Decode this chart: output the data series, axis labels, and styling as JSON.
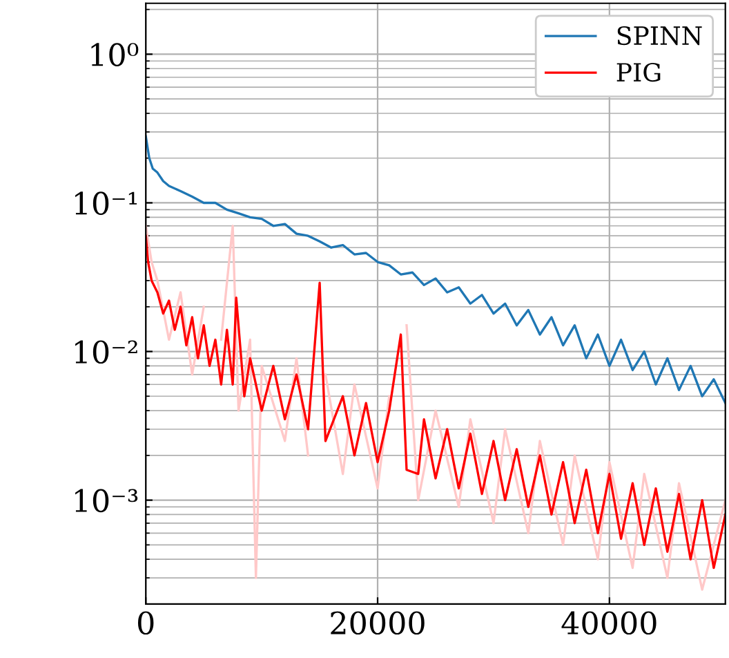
{
  "chart_data": {
    "type": "line",
    "log": "y",
    "grid": true,
    "legend": "top right",
    "xlim": [
      0,
      50000
    ],
    "xticks": [
      0,
      20000,
      40000
    ],
    "ylim": [
      0.0002,
      2.2
    ],
    "yticks": [
      {
        "value": 1,
        "label": "10⁰"
      },
      {
        "value": 0.1,
        "label": "10⁻¹"
      },
      {
        "value": 0.01,
        "label": "10⁻²"
      },
      {
        "value": 0.001,
        "label": "10⁻³"
      }
    ],
    "series": [
      {
        "color": "#ffc8c8",
        "x": [
          0,
          500,
          1000,
          2000,
          3000,
          4000,
          5000,
          6000,
          6500,
          7500,
          8000,
          9000,
          9500,
          10000,
          12000,
          13000,
          14000,
          15000,
          15500,
          17000,
          18000,
          20000,
          21000,
          22000,
          22500,
          23500,
          25000,
          27000,
          28000,
          30000,
          31000,
          33000,
          34000,
          36000,
          37000,
          39000,
          40000,
          42000,
          43000,
          45000,
          46000,
          48000,
          50000
        ],
        "values": [
          0.07,
          0.04,
          0.03,
          0.012,
          0.025,
          0.007,
          0.02,
          null,
          0.012,
          0.07,
          0.004,
          0.012,
          0.0003,
          0.008,
          0.0025,
          0.009,
          0.002,
          null,
          0.007,
          0.0015,
          0.006,
          0.0012,
          0.005,
          null,
          0.015,
          0.001,
          0.004,
          0.0009,
          0.0035,
          0.0007,
          0.003,
          0.0006,
          0.0025,
          0.0005,
          0.002,
          0.0004,
          0.0018,
          0.00035,
          0.0015,
          0.0003,
          0.0013,
          0.00025,
          0.001
        ]
      },
      {
        "name": "SPINN",
        "color": "#1f77b4",
        "x": [
          0,
          300,
          600,
          1000,
          1500,
          2000,
          3000,
          4000,
          5000,
          6000,
          7000,
          8000,
          9000,
          10000,
          11000,
          12000,
          13000,
          14000,
          15000,
          16000,
          17000,
          18000,
          19000,
          20000,
          21000,
          22000,
          23000,
          24000,
          25000,
          26000,
          27000,
          28000,
          29000,
          30000,
          31000,
          32000,
          33000,
          34000,
          35000,
          36000,
          37000,
          38000,
          39000,
          40000,
          41000,
          42000,
          43000,
          44000,
          45000,
          46000,
          47000,
          48000,
          49000,
          50000
        ],
        "values": [
          0.28,
          0.2,
          0.17,
          0.16,
          0.14,
          0.13,
          0.12,
          0.11,
          0.1,
          0.1,
          0.09,
          0.085,
          0.08,
          0.078,
          0.07,
          0.072,
          0.062,
          0.06,
          0.055,
          0.05,
          0.052,
          0.045,
          0.046,
          0.04,
          0.038,
          0.033,
          0.034,
          0.028,
          0.031,
          0.025,
          0.027,
          0.021,
          0.024,
          0.018,
          0.021,
          0.015,
          0.019,
          0.013,
          0.017,
          0.011,
          0.015,
          0.009,
          0.013,
          0.008,
          0.012,
          0.0075,
          0.01,
          0.006,
          0.009,
          0.0055,
          0.008,
          0.005,
          0.0065,
          0.0045
        ]
      },
      {
        "name": "PIG",
        "color": "#ff0000",
        "x": [
          0,
          200,
          500,
          1000,
          1500,
          2000,
          2500,
          3000,
          3500,
          4000,
          4500,
          5000,
          5500,
          6000,
          6500,
          7000,
          7500,
          7800,
          8500,
          9000,
          10000,
          11000,
          12000,
          13000,
          14000,
          15000,
          15500,
          17000,
          18000,
          19000,
          20000,
          21000,
          22000,
          22500,
          23500,
          24000,
          25000,
          26000,
          27000,
          28000,
          29000,
          30000,
          31000,
          32000,
          33000,
          34000,
          35000,
          36000,
          37000,
          38000,
          39000,
          40000,
          41000,
          42000,
          43000,
          44000,
          45000,
          46000,
          47000,
          48000,
          49000,
          50000
        ],
        "values": [
          0.06,
          0.04,
          0.03,
          0.025,
          0.018,
          0.022,
          0.014,
          0.02,
          0.011,
          0.017,
          0.009,
          0.015,
          0.008,
          0.012,
          0.006,
          0.014,
          0.006,
          0.023,
          0.005,
          0.009,
          0.004,
          0.008,
          0.0035,
          0.007,
          0.003,
          0.029,
          0.0025,
          0.005,
          0.002,
          0.0045,
          0.0018,
          0.004,
          0.013,
          0.0016,
          0.0015,
          0.0035,
          0.0014,
          0.003,
          0.0012,
          0.0028,
          0.0011,
          0.0025,
          0.001,
          0.0022,
          0.0009,
          0.002,
          0.0008,
          0.0018,
          0.0007,
          0.0016,
          0.0006,
          0.0015,
          0.00055,
          0.0013,
          0.0005,
          0.0012,
          0.00045,
          0.0011,
          0.0004,
          0.001,
          0.00035,
          0.0008
        ]
      }
    ]
  }
}
